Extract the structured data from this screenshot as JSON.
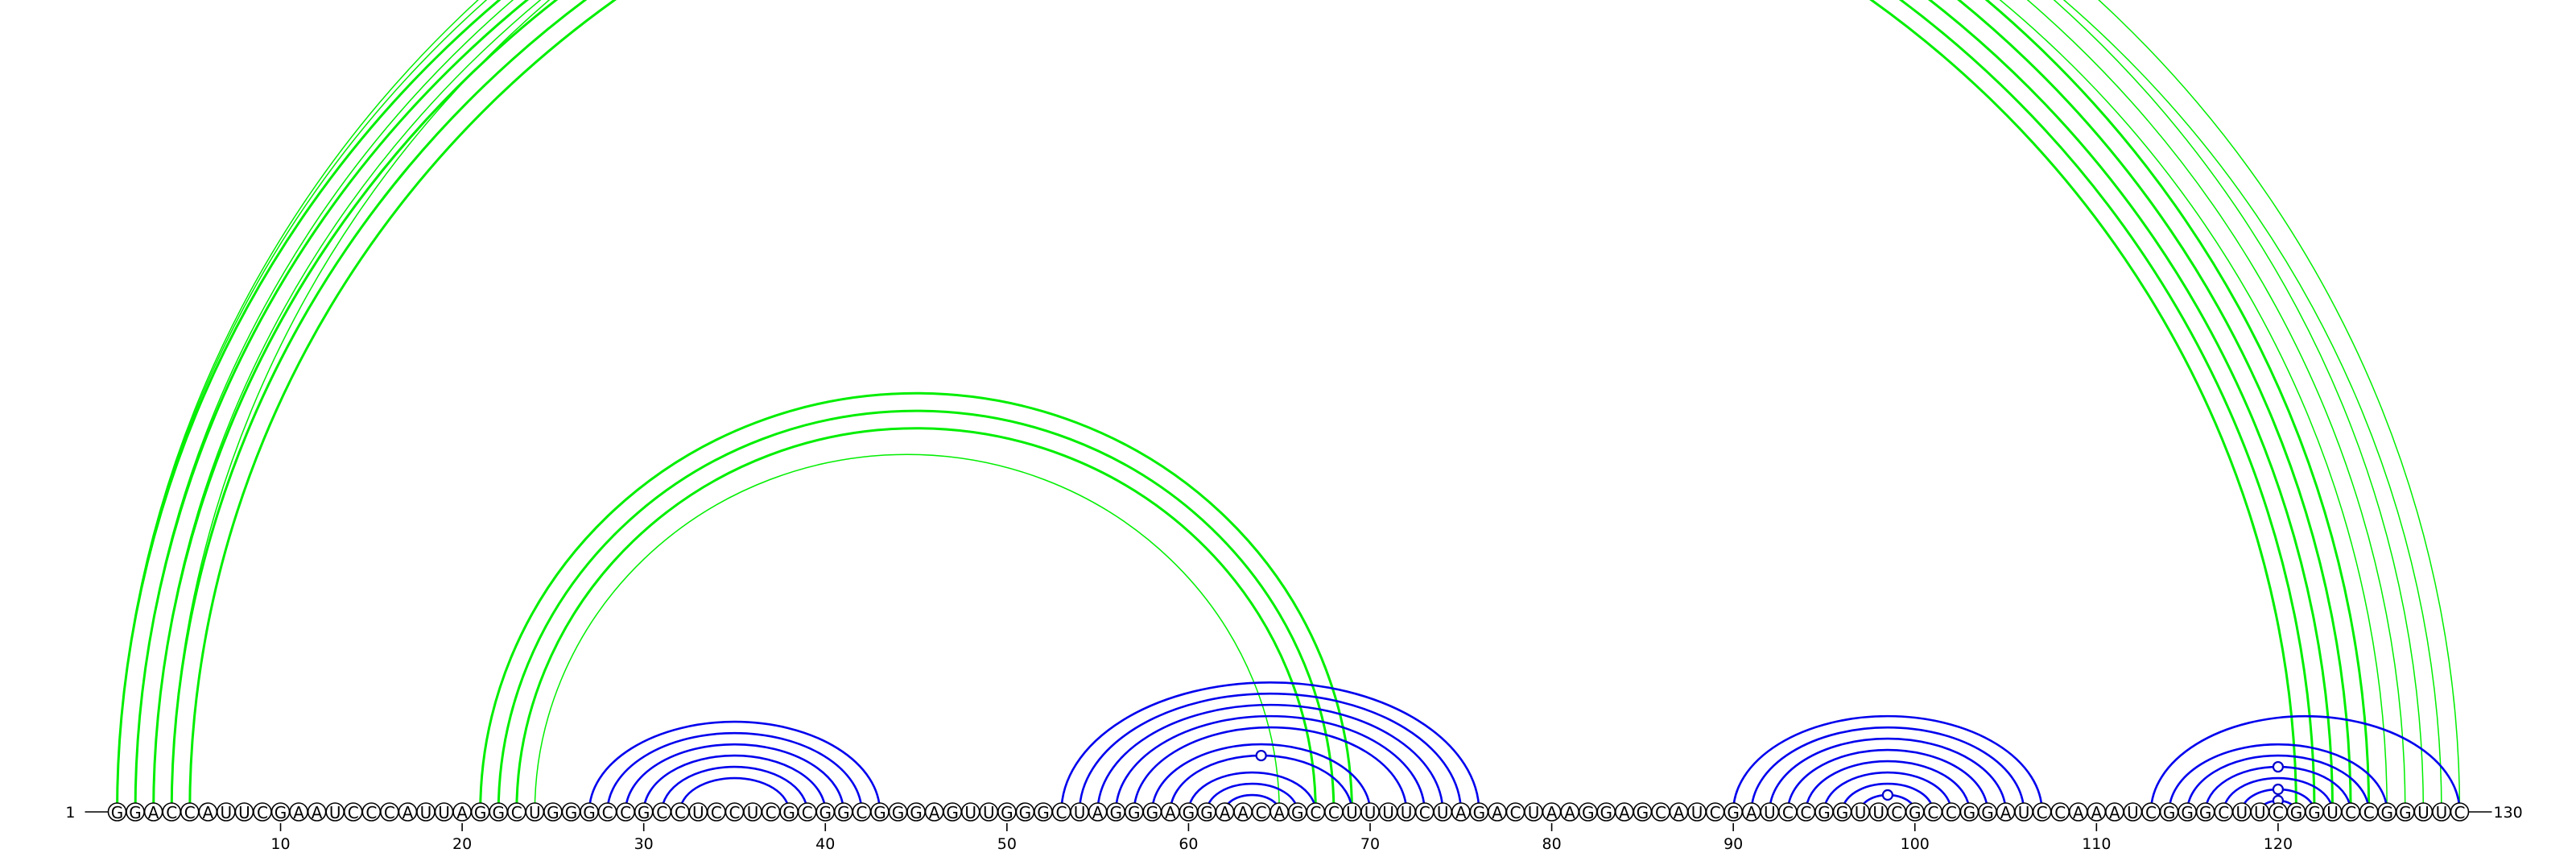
{
  "sequence": "GGACCAUUCGAAUCCCAUUAGGCUGGGCCGCCUCCUCGCGGCGGGAGUUGGGCUAGGGAGGAACAGCCUUUUCUAGACUAAGGAGCAUCGAUCCGGUUCGCCGGAUCCAAAUCGGGCUUCGGUCCGGUUC",
  "start_label": "1",
  "end_label": "130",
  "ticks": [
    "10",
    "20",
    "30",
    "40",
    "50",
    "60",
    "70",
    "80",
    "90",
    "100",
    "110",
    "120"
  ],
  "colors": {
    "upper_arcs": "#00ee00",
    "lower_arcs": "#0000ee",
    "upper_markers": "#33cc33",
    "lower_markers": "#0000cc"
  },
  "chart_data": {
    "type": "arc",
    "upper_arcs": [
      {
        "i": 1,
        "j": 125,
        "w": 3
      },
      {
        "i": 2,
        "j": 124,
        "w": 3
      },
      {
        "i": 3,
        "j": 123,
        "w": 3
      },
      {
        "i": 4,
        "j": 122,
        "w": 3
      },
      {
        "i": 5,
        "j": 121,
        "w": 3
      },
      {
        "i": 1,
        "j": 128,
        "w": 1.5,
        "marker": true
      },
      {
        "i": 2,
        "j": 127,
        "w": 1.5
      },
      {
        "i": 3,
        "j": 126,
        "w": 1.5
      },
      {
        "i": 21,
        "j": 69,
        "w": 3
      },
      {
        "i": 22,
        "j": 68,
        "w": 3
      },
      {
        "i": 23,
        "j": 67,
        "w": 3
      },
      {
        "i": 24,
        "j": 65,
        "w": 1.5
      },
      {
        "i": 1,
        "j": 130,
        "w": 1.5
      },
      {
        "i": 4,
        "j": 129,
        "w": 1.5
      }
    ],
    "lower_arcs": [
      {
        "i": 27,
        "j": 43
      },
      {
        "i": 28,
        "j": 42
      },
      {
        "i": 29,
        "j": 41
      },
      {
        "i": 30,
        "j": 40
      },
      {
        "i": 31,
        "j": 39
      },
      {
        "i": 32,
        "j": 38
      },
      {
        "i": 53,
        "j": 76
      },
      {
        "i": 54,
        "j": 75
      },
      {
        "i": 55,
        "j": 74
      },
      {
        "i": 56,
        "j": 73
      },
      {
        "i": 57,
        "j": 72
      },
      {
        "i": 58,
        "j": 70
      },
      {
        "i": 59,
        "j": 69,
        "marker": true
      },
      {
        "i": 60,
        "j": 67
      },
      {
        "i": 61,
        "j": 66
      },
      {
        "i": 62,
        "j": 65
      },
      {
        "i": 90,
        "j": 107
      },
      {
        "i": 91,
        "j": 106
      },
      {
        "i": 92,
        "j": 105
      },
      {
        "i": 93,
        "j": 104
      },
      {
        "i": 94,
        "j": 103
      },
      {
        "i": 95,
        "j": 102
      },
      {
        "i": 96,
        "j": 101
      },
      {
        "i": 97,
        "j": 100,
        "marker": true
      },
      {
        "i": 113,
        "j": 130
      },
      {
        "i": 114,
        "j": 126
      },
      {
        "i": 115,
        "j": 125
      },
      {
        "i": 116,
        "j": 124,
        "marker": true
      },
      {
        "i": 117,
        "j": 123
      },
      {
        "i": 118,
        "j": 122,
        "marker": true
      },
      {
        "i": 119,
        "j": 121,
        "marker": true
      }
    ]
  }
}
